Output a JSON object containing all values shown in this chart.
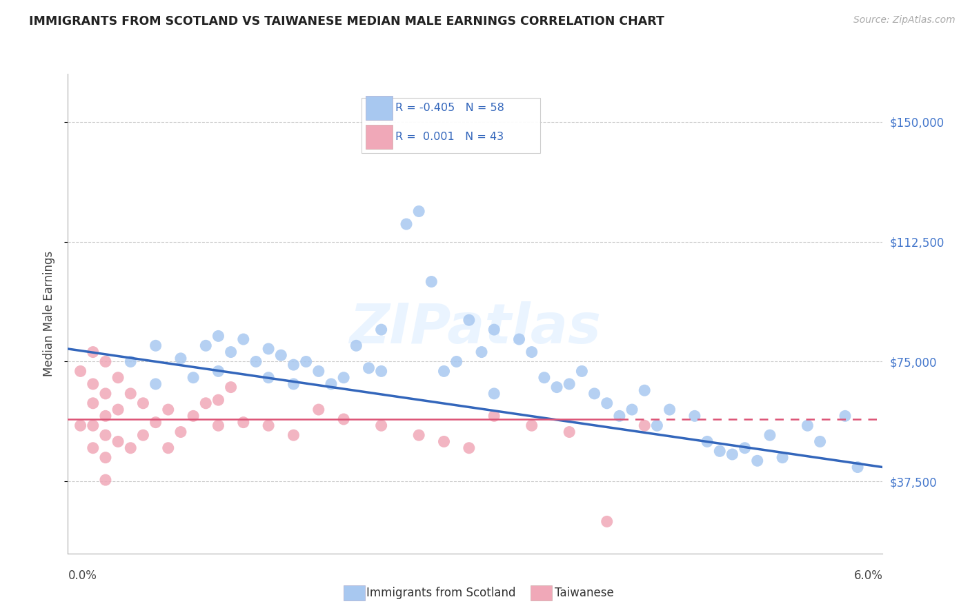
{
  "title": "IMMIGRANTS FROM SCOTLAND VS TAIWANESE MEDIAN MALE EARNINGS CORRELATION CHART",
  "source": "Source: ZipAtlas.com",
  "ylabel": "Median Male Earnings",
  "legend_blue_label": "Immigrants from Scotland",
  "legend_pink_label": "Taiwanese",
  "legend_blue_r": "R = -0.405",
  "legend_blue_n": "N = 58",
  "legend_pink_r": "R =  0.001",
  "legend_pink_n": "N = 43",
  "yticks": [
    37500,
    75000,
    112500,
    150000
  ],
  "ytick_labels": [
    "$37,500",
    "$75,000",
    "$112,500",
    "$150,000"
  ],
  "ylim": [
    15000,
    165000
  ],
  "xlim": [
    0.0,
    0.065
  ],
  "blue_color": "#a8c8f0",
  "pink_color": "#f0a8b8",
  "blue_line_color": "#3366bb",
  "pink_line_color": "#dd5577",
  "watermark": "ZIPatlas",
  "blue_scatter_x": [
    0.005,
    0.007,
    0.007,
    0.009,
    0.01,
    0.011,
    0.012,
    0.012,
    0.013,
    0.014,
    0.015,
    0.016,
    0.016,
    0.017,
    0.018,
    0.018,
    0.019,
    0.02,
    0.021,
    0.022,
    0.023,
    0.024,
    0.025,
    0.025,
    0.027,
    0.028,
    0.029,
    0.03,
    0.031,
    0.032,
    0.033,
    0.034,
    0.034,
    0.036,
    0.037,
    0.038,
    0.039,
    0.04,
    0.041,
    0.042,
    0.043,
    0.044,
    0.045,
    0.046,
    0.047,
    0.048,
    0.05,
    0.051,
    0.052,
    0.053,
    0.054,
    0.055,
    0.056,
    0.057,
    0.059,
    0.06,
    0.062,
    0.063
  ],
  "blue_scatter_y": [
    75000,
    80000,
    68000,
    76000,
    70000,
    80000,
    72000,
    83000,
    78000,
    82000,
    75000,
    79000,
    70000,
    77000,
    74000,
    68000,
    75000,
    72000,
    68000,
    70000,
    80000,
    73000,
    85000,
    72000,
    118000,
    122000,
    100000,
    72000,
    75000,
    88000,
    78000,
    85000,
    65000,
    82000,
    78000,
    70000,
    67000,
    68000,
    72000,
    65000,
    62000,
    58000,
    60000,
    66000,
    55000,
    60000,
    58000,
    50000,
    47000,
    46000,
    48000,
    44000,
    52000,
    45000,
    55000,
    50000,
    58000,
    42000
  ],
  "pink_scatter_x": [
    0.001,
    0.001,
    0.002,
    0.002,
    0.002,
    0.002,
    0.002,
    0.003,
    0.003,
    0.003,
    0.003,
    0.003,
    0.003,
    0.004,
    0.004,
    0.004,
    0.005,
    0.005,
    0.006,
    0.006,
    0.007,
    0.008,
    0.008,
    0.009,
    0.01,
    0.011,
    0.012,
    0.012,
    0.013,
    0.014,
    0.016,
    0.018,
    0.02,
    0.022,
    0.025,
    0.028,
    0.03,
    0.032,
    0.034,
    0.037,
    0.04,
    0.043,
    0.046
  ],
  "pink_scatter_y": [
    72000,
    55000,
    78000,
    68000,
    62000,
    55000,
    48000,
    75000,
    65000,
    58000,
    52000,
    45000,
    38000,
    70000,
    60000,
    50000,
    65000,
    48000,
    62000,
    52000,
    56000,
    60000,
    48000,
    53000,
    58000,
    62000,
    63000,
    55000,
    67000,
    56000,
    55000,
    52000,
    60000,
    57000,
    55000,
    52000,
    50000,
    48000,
    58000,
    55000,
    53000,
    25000,
    55000
  ],
  "blue_line_x0": 0.0,
  "blue_line_y0": 79000,
  "blue_line_x1": 0.065,
  "blue_line_y1": 42000,
  "pink_line_y": 57000
}
